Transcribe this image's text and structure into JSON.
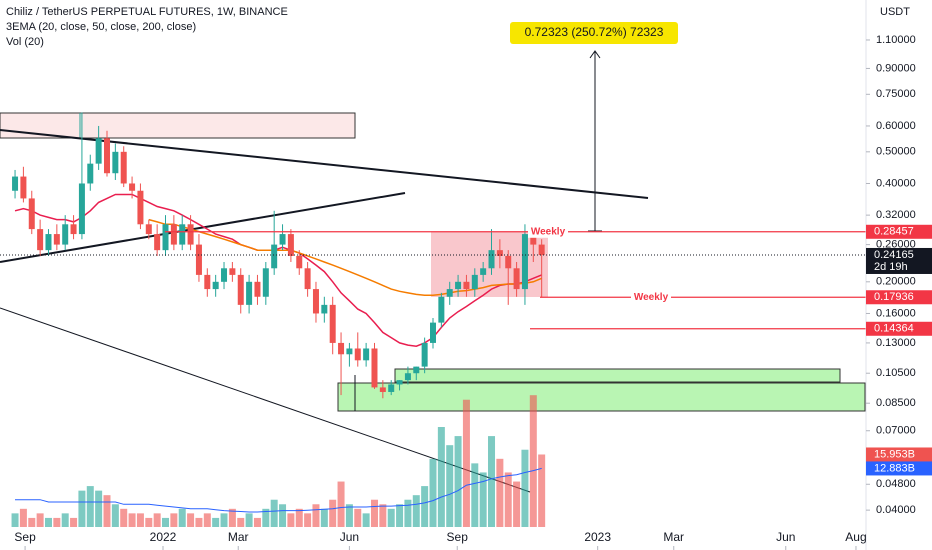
{
  "chart_data": {
    "type": "candlestick",
    "title": "Chiliz / TetherUS PERPETUAL FUTURES, 1W, BINANCE",
    "indicator_labels": [
      "3EMA (20, close, 50, close, 200, close)",
      "Vol (20)"
    ],
    "y_axis_label": "USDT",
    "log": true,
    "ylim": [
      0.0302,
      1.458
    ],
    "yticks": [
      {
        "value": 1.1,
        "label": "1.10000"
      },
      {
        "value": 0.9,
        "label": "0.90000"
      },
      {
        "value": 0.75,
        "label": "0.75000"
      },
      {
        "value": 0.6,
        "label": "0.60000"
      },
      {
        "value": 0.5,
        "label": "0.50000"
      },
      {
        "value": 0.4,
        "label": "0.40000"
      },
      {
        "value": 0.32,
        "label": "0.32000"
      },
      {
        "value": 0.26,
        "label": "0.26000"
      },
      {
        "value": 0.2,
        "label": "0.20000"
      },
      {
        "value": 0.16,
        "label": "0.16000"
      },
      {
        "value": 0.13,
        "label": "0.13000"
      },
      {
        "value": 0.105,
        "label": "0.10500"
      },
      {
        "value": 0.085,
        "label": "0.08500"
      },
      {
        "value": 0.07,
        "label": "0.07000"
      },
      {
        "value": 0.048,
        "label": "0.04800"
      },
      {
        "value": 0.04,
        "label": "0.04000"
      }
    ],
    "xlim": [
      -1.8,
      101.8
    ],
    "xticks": [
      {
        "value": 1.2,
        "label": "Sep"
      },
      {
        "value": 17.7,
        "label": "2022"
      },
      {
        "value": 26.7,
        "label": "Mar"
      },
      {
        "value": 40,
        "label": "Jun"
      },
      {
        "value": 52.9,
        "label": "Sep"
      },
      {
        "value": 69.7,
        "label": "2023"
      },
      {
        "value": 78.8,
        "label": "Mar"
      },
      {
        "value": 92.2,
        "label": "Jun"
      },
      {
        "value": 100.6,
        "label": "Aug"
      }
    ],
    "up_color": "#26a69a",
    "down_color": "#ef5350",
    "candles": {
      "open": [
        0.38,
        0.42,
        0.36,
        0.29,
        0.25,
        0.28,
        0.26,
        0.3,
        0.28,
        0.4,
        0.46,
        0.55,
        0.43,
        0.5,
        0.4,
        0.38,
        0.3,
        0.28,
        0.25,
        0.3,
        0.26,
        0.3,
        0.26,
        0.21,
        0.19,
        0.2,
        0.22,
        0.21,
        0.17,
        0.2,
        0.18,
        0.22,
        0.26,
        0.28,
        0.24,
        0.22,
        0.19,
        0.16,
        0.17,
        0.13,
        0.12,
        0.125,
        0.115,
        0.125,
        0.095,
        0.092,
        0.097,
        0.1,
        0.105,
        0.11,
        0.13,
        0.15,
        0.18,
        0.19,
        0.2,
        0.19,
        0.21,
        0.22,
        0.25,
        0.24,
        0.22,
        0.19,
        0.28,
        0.26
      ],
      "high": [
        0.44,
        0.45,
        0.38,
        0.31,
        0.29,
        0.3,
        0.32,
        0.32,
        0.66,
        0.49,
        0.6,
        0.58,
        0.53,
        0.52,
        0.42,
        0.4,
        0.31,
        0.3,
        0.32,
        0.32,
        0.32,
        0.32,
        0.28,
        0.22,
        0.21,
        0.23,
        0.23,
        0.22,
        0.21,
        0.21,
        0.23,
        0.33,
        0.3,
        0.29,
        0.25,
        0.23,
        0.2,
        0.18,
        0.18,
        0.14,
        0.13,
        0.14,
        0.13,
        0.13,
        0.1,
        0.1,
        0.1,
        0.11,
        0.11,
        0.135,
        0.155,
        0.185,
        0.2,
        0.21,
        0.21,
        0.22,
        0.23,
        0.29,
        0.27,
        0.25,
        0.23,
        0.3,
        0.29,
        0.27
      ],
      "low": [
        0.36,
        0.35,
        0.28,
        0.24,
        0.24,
        0.25,
        0.25,
        0.27,
        0.27,
        0.38,
        0.44,
        0.42,
        0.41,
        0.39,
        0.36,
        0.29,
        0.27,
        0.24,
        0.24,
        0.25,
        0.25,
        0.25,
        0.2,
        0.18,
        0.18,
        0.19,
        0.2,
        0.16,
        0.16,
        0.17,
        0.17,
        0.21,
        0.25,
        0.23,
        0.21,
        0.18,
        0.15,
        0.15,
        0.12,
        0.09,
        0.11,
        0.11,
        0.11,
        0.094,
        0.088,
        0.09,
        0.093,
        0.097,
        0.1,
        0.105,
        0.125,
        0.145,
        0.17,
        0.18,
        0.18,
        0.18,
        0.2,
        0.21,
        0.22,
        0.17,
        0.18,
        0.17,
        0.23,
        0.179
      ],
      "close": [
        0.42,
        0.36,
        0.29,
        0.25,
        0.28,
        0.26,
        0.3,
        0.28,
        0.4,
        0.46,
        0.55,
        0.43,
        0.5,
        0.4,
        0.38,
        0.3,
        0.28,
        0.25,
        0.3,
        0.26,
        0.3,
        0.26,
        0.21,
        0.19,
        0.2,
        0.22,
        0.21,
        0.17,
        0.2,
        0.18,
        0.22,
        0.26,
        0.28,
        0.24,
        0.22,
        0.19,
        0.16,
        0.17,
        0.13,
        0.12,
        0.125,
        0.115,
        0.125,
        0.095,
        0.092,
        0.097,
        0.1,
        0.105,
        0.11,
        0.13,
        0.15,
        0.18,
        0.19,
        0.2,
        0.19,
        0.21,
        0.22,
        0.25,
        0.24,
        0.22,
        0.19,
        0.28,
        0.26,
        0.24165
      ]
    },
    "countdown": "2d 19h",
    "ema": [
      {
        "color": "#e91e4f",
        "values": [
          0.33,
          0.335,
          0.33,
          0.32,
          0.315,
          0.31,
          0.31,
          0.305,
          0.315,
          0.33,
          0.35,
          0.36,
          0.37,
          0.37,
          0.37,
          0.36,
          0.35,
          0.34,
          0.335,
          0.33,
          0.32,
          0.31,
          0.3,
          0.29,
          0.28,
          0.275,
          0.27,
          0.26,
          0.255,
          0.25,
          0.25,
          0.25,
          0.255,
          0.25,
          0.245,
          0.235,
          0.225,
          0.215,
          0.2,
          0.185,
          0.175,
          0.165,
          0.16,
          0.15,
          0.14,
          0.135,
          0.13,
          0.128,
          0.127,
          0.13,
          0.135,
          0.145,
          0.155,
          0.162,
          0.168,
          0.175,
          0.182,
          0.19,
          0.195,
          0.197,
          0.197,
          0.2,
          0.205,
          0.21
        ]
      },
      {
        "color": "#f57c00",
        "values": [
          null,
          null,
          null,
          null,
          null,
          null,
          null,
          null,
          null,
          null,
          null,
          null,
          null,
          null,
          null,
          null,
          0.31,
          0.305,
          0.3,
          0.3,
          0.295,
          0.29,
          0.285,
          0.28,
          0.275,
          0.27,
          0.265,
          0.26,
          0.255,
          0.25,
          0.25,
          0.25,
          0.25,
          0.25,
          0.245,
          0.24,
          0.235,
          0.23,
          0.225,
          0.22,
          0.215,
          0.21,
          0.205,
          0.2,
          0.195,
          0.19,
          0.187,
          0.185,
          0.183,
          0.182,
          0.182,
          0.183,
          0.185,
          0.187,
          0.188,
          0.19,
          0.192,
          0.195,
          0.196,
          0.197,
          0.197,
          0.198,
          0.2,
          0.205
        ]
      }
    ],
    "volume": {
      "vlim": [
        0,
        33
      ],
      "values": [
        3,
        4,
        2,
        3,
        2,
        2,
        3,
        2,
        8,
        9,
        8,
        7,
        5,
        4,
        3,
        3,
        2,
        3,
        2,
        3,
        4,
        3,
        2,
        3,
        2,
        3,
        4,
        2,
        3,
        2,
        4,
        6,
        5,
        3,
        4,
        3,
        5,
        4,
        6,
        10,
        5,
        4,
        3,
        6,
        5,
        4,
        5,
        6,
        7,
        9,
        15,
        22,
        18,
        20,
        28,
        14,
        12,
        20,
        15,
        12,
        10,
        17,
        29,
        15.953
      ],
      "last_value_label": "15.953B",
      "ma_color": "#2962ff",
      "ma": [
        6,
        6,
        6,
        6,
        5.5,
        5.5,
        5.5,
        5.5,
        5.5,
        5.5,
        5.5,
        5.5,
        5.5,
        5,
        5,
        5,
        5,
        4.8,
        4.6,
        4.4,
        4.2,
        4,
        4,
        4,
        3.8,
        3.6,
        3.5,
        3.4,
        3.3,
        3.3,
        3.4,
        3.5,
        3.6,
        3.6,
        3.6,
        3.7,
        3.8,
        3.9,
        4,
        4.3,
        4.4,
        4.4,
        4.4,
        4.5,
        4.6,
        4.6,
        4.7,
        4.8,
        5,
        5.3,
        5.8,
        6.6,
        7.2,
        8,
        9.2,
        9.6,
        10,
        10.6,
        11,
        11.3,
        11.5,
        12,
        12.4,
        12.883
      ],
      "ma_last_label": "12.883B"
    },
    "price_lines": [
      {
        "value": 0.28457,
        "text": "Weekly"
      },
      {
        "value": 0.17936,
        "text": "Weekly"
      },
      {
        "value": 0.14364
      }
    ],
    "price_line_color": "#f23645",
    "projection_label": "0.72323 (250.72%) 72323"
  }
}
